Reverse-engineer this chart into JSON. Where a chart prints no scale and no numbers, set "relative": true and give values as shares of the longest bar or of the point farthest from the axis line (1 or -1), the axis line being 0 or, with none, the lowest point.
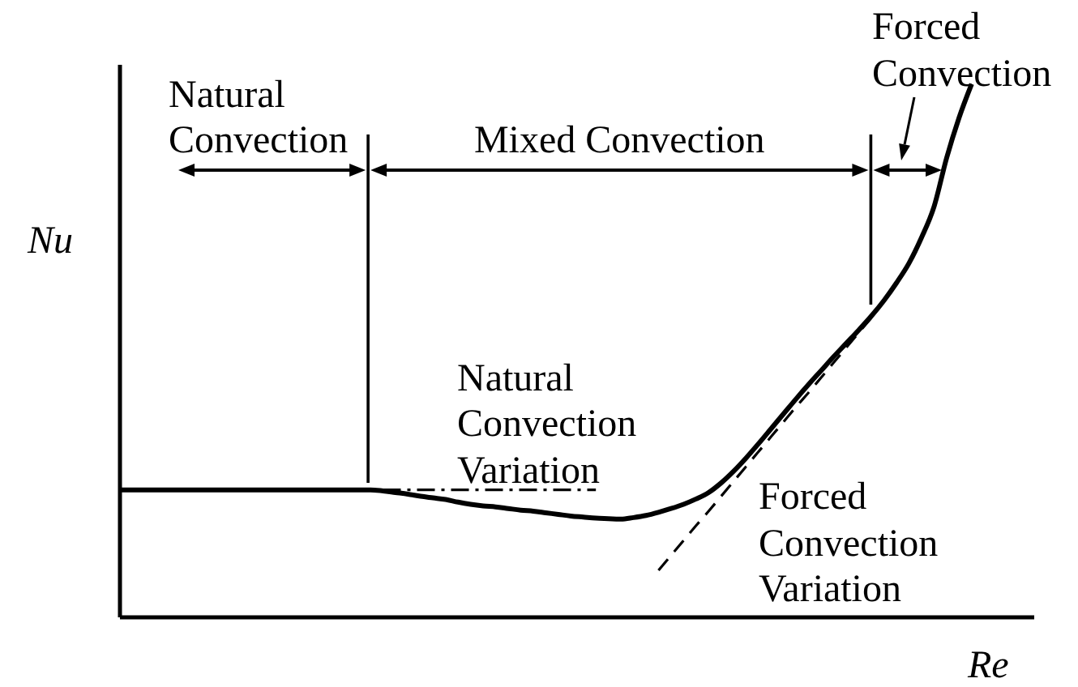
{
  "chart_data": {
    "type": "line",
    "relative": true,
    "xlabel": "Re",
    "ylabel": "Nu",
    "line_style": "solid",
    "categories": [
      null,
      null,
      null,
      null,
      null,
      null,
      null,
      null,
      null,
      null,
      null,
      null,
      null,
      null,
      null,
      null,
      null,
      null,
      null,
      null,
      null,
      null,
      null,
      null,
      null,
      null,
      null,
      null,
      null,
      null,
      null,
      null,
      null,
      null,
      null,
      null,
      null,
      null,
      null,
      null,
      null,
      null,
      null,
      null,
      null,
      null,
      null,
      null,
      null,
      null,
      null,
      null,
      null,
      null,
      null,
      null,
      null,
      null,
      null,
      null,
      null,
      null,
      null,
      null,
      null,
      null,
      null,
      null,
      null,
      null,
      null,
      null,
      null,
      null
    ],
    "series": [
      {
        "color": "#000000",
        "values": [
          0.239,
          0.239,
          0.239,
          0.239,
          0.239,
          0.239,
          0.239,
          0.239,
          0.239,
          0.239,
          0.239,
          0.239,
          0.239,
          0.239,
          0.239,
          0.239,
          0.239,
          0.239,
          0.239,
          0.239,
          0.239,
          0.237,
          0.234,
          0.231,
          0.227,
          0.224,
          0.221,
          0.216,
          0.212,
          0.209,
          0.207,
          0.204,
          0.201,
          0.199,
          0.196,
          0.193,
          0.19,
          0.188,
          0.186,
          0.185,
          0.184,
          0.187,
          0.191,
          0.197,
          0.204,
          0.212,
          0.222,
          0.234,
          0.252,
          0.274,
          0.299,
          0.326,
          0.354,
          0.382,
          0.41,
          0.437,
          0.463,
          0.489,
          0.514,
          0.539,
          0.565,
          0.594,
          0.627,
          0.664,
          0.712,
          0.77,
          0.861,
          0.937,
          1,
          null,
          null,
          null,
          null,
          null
        ]
      },
      {
        "name": "Natural Convection Variation",
        "color": "#000000",
        "line_style": "dashdot",
        "values": [
          null,
          null,
          null,
          null,
          null,
          null,
          null,
          null,
          null,
          null,
          null,
          null,
          null,
          null,
          null,
          null,
          null,
          null,
          null,
          null,
          null,
          0.239,
          0.239,
          0.239,
          0.239,
          0.239,
          0.239,
          0.239,
          0.239,
          0.239,
          0.239,
          0.239,
          0.239,
          0.239,
          0.239,
          0.239,
          0.239,
          0.239,
          0.239,
          null,
          null,
          null,
          null,
          null,
          null,
          null,
          null,
          null,
          null,
          null,
          null,
          null,
          null,
          null,
          null,
          null,
          null,
          null,
          null,
          null,
          null,
          null,
          null,
          null,
          null,
          null,
          null,
          null,
          null,
          null,
          null,
          null,
          null,
          null
        ]
      },
      {
        "name": "Forced Convection Variation",
        "color": "#000000",
        "line_style": "dashed",
        "values": [
          null,
          null,
          null,
          null,
          null,
          null,
          null,
          null,
          null,
          null,
          null,
          null,
          null,
          null,
          null,
          null,
          null,
          null,
          null,
          null,
          null,
          null,
          null,
          null,
          null,
          null,
          null,
          null,
          null,
          null,
          null,
          null,
          null,
          null,
          null,
          null,
          null,
          null,
          null,
          null,
          null,
          null,
          null,
          0.088,
          0.116,
          0.144,
          0.172,
          0.199,
          0.227,
          0.255,
          0.283,
          0.311,
          0.339,
          0.367,
          0.395,
          0.422,
          0.45,
          0.478,
          0.506,
          0.534,
          0.562,
          null,
          null,
          null,
          null,
          null,
          null,
          null,
          null,
          null,
          null,
          null,
          null,
          null
        ]
      }
    ],
    "annotations": [
      "Natural Convection",
      "Mixed Convection",
      "Forced Convection"
    ]
  }
}
